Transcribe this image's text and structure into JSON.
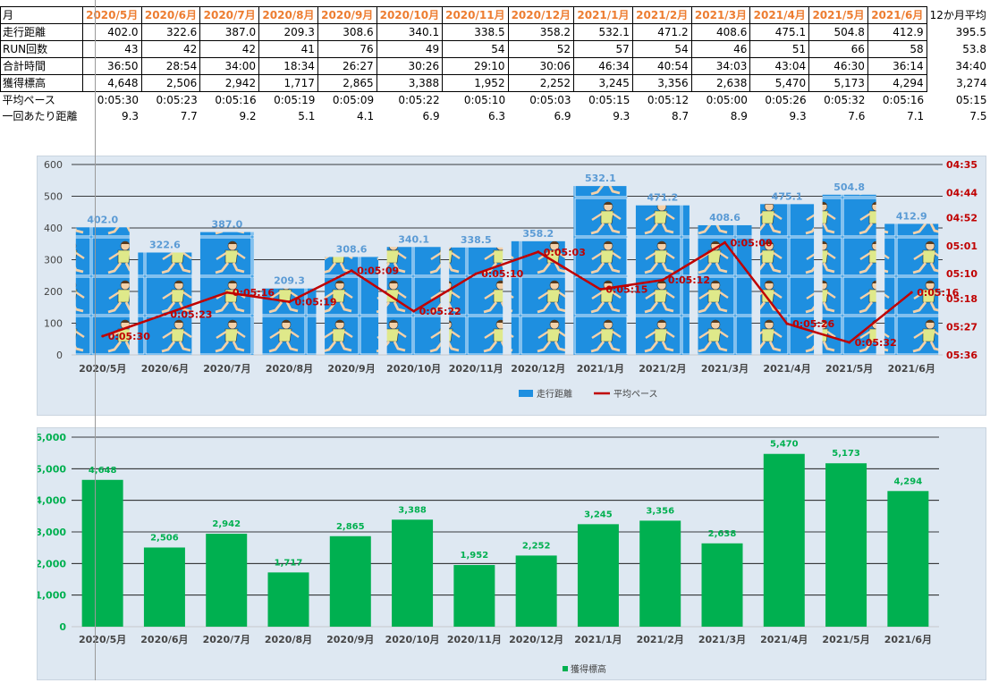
{
  "table": {
    "month_header": "月",
    "avg_header": "12か月平均",
    "months": [
      "2020/5月",
      "2020/6月",
      "2020/7月",
      "2020/8月",
      "2020/9月",
      "2020/10月",
      "2020/11月",
      "2020/12月",
      "2021/1月",
      "2021/2月",
      "2021/3月",
      "2021/4月",
      "2021/5月",
      "2021/6月"
    ],
    "rows": [
      {
        "label": "走行距離",
        "values": [
          "402.0",
          "322.6",
          "387.0",
          "209.3",
          "308.6",
          "340.1",
          "338.5",
          "358.2",
          "532.1",
          "471.2",
          "408.6",
          "475.1",
          "504.8",
          "412.9"
        ],
        "avg": "395.5",
        "bordered": true
      },
      {
        "label": "RUN回数",
        "values": [
          "43",
          "42",
          "42",
          "41",
          "76",
          "49",
          "54",
          "52",
          "57",
          "54",
          "46",
          "51",
          "66",
          "58"
        ],
        "avg": "53.8",
        "bordered": true
      },
      {
        "label": "合計時間",
        "values": [
          "36:50",
          "28:54",
          "34:00",
          "18:34",
          "26:27",
          "30:26",
          "29:10",
          "30:06",
          "46:34",
          "40:54",
          "34:03",
          "43:04",
          "46:30",
          "36:14"
        ],
        "avg": "34:40",
        "bordered": true
      },
      {
        "label": "獲得標高",
        "values": [
          "4,648",
          "2,506",
          "2,942",
          "1,717",
          "2,865",
          "3,388",
          "1,952",
          "2,252",
          "3,245",
          "3,356",
          "2,638",
          "5,470",
          "5,173",
          "4,294"
        ],
        "avg": "3,274",
        "bordered": true
      },
      {
        "label": "平均ペース",
        "values": [
          "0:05:30",
          "0:05:23",
          "0:05:16",
          "0:05:19",
          "0:05:09",
          "0:05:22",
          "0:05:10",
          "0:05:03",
          "0:05:15",
          "0:05:12",
          "0:05:00",
          "0:05:26",
          "0:05:32",
          "0:05:16"
        ],
        "avg": "05:15",
        "bordered": false
      },
      {
        "label": "一回あたり距離",
        "values": [
          "9.3",
          "7.7",
          "9.2",
          "5.1",
          "4.1",
          "6.9",
          "6.3",
          "6.9",
          "9.3",
          "8.7",
          "8.9",
          "9.3",
          "7.6",
          "7.1"
        ],
        "avg": "7.5",
        "bordered": false
      }
    ]
  },
  "colors": {
    "header_month": "#ed7d31",
    "bar_blue": "#1e8fe0",
    "bar_label_blue": "#5b9bd5",
    "pace_line": "#c00000",
    "bar_green": "#00b050",
    "plot_bg": "#dee8f2"
  },
  "chart_data": [
    {
      "type": "bar",
      "categories": [
        "2020/5月",
        "2020/6月",
        "2020/7月",
        "2020/8月",
        "2020/9月",
        "2020/10月",
        "2020/11月",
        "2020/12月",
        "2021/1月",
        "2021/2月",
        "2021/3月",
        "2021/4月",
        "2021/5月",
        "2021/6月"
      ],
      "series": [
        {
          "name": "走行距離",
          "type": "bar",
          "axis": "left",
          "values": [
            402.0,
            322.6,
            387.0,
            209.3,
            308.6,
            340.1,
            338.5,
            358.2,
            532.1,
            471.2,
            408.6,
            475.1,
            504.8,
            412.9
          ],
          "labels": [
            "402.0",
            "322.6",
            "387.0",
            "209.3",
            "308.6",
            "340.1",
            "338.5",
            "358.2",
            "532.1",
            "471.2",
            "408.6",
            "475.1",
            "504.8",
            "412.9"
          ]
        },
        {
          "name": "平均ペース",
          "type": "line",
          "axis": "right",
          "values": [
            "05:30",
            "05:23",
            "05:16",
            "05:19",
            "05:09",
            "05:22",
            "05:10",
            "05:03",
            "05:15",
            "05:12",
            "05:00",
            "05:26",
            "05:32",
            "05:16"
          ],
          "labels": [
            "0:05:30",
            "0:05:23",
            "0:05:16",
            "0:05:19",
            "0:05:09",
            "0:05:22",
            "0:05:10",
            "0:05:03",
            "0:05:15",
            "0:05:12",
            "0:05:00",
            "0:05:26",
            "0:05:32",
            "0:05:16"
          ]
        }
      ],
      "y_left": {
        "min": 0,
        "max": 600,
        "ticks": [
          "0",
          "100",
          "200",
          "300",
          "400",
          "500",
          "600"
        ]
      },
      "y_right": {
        "reversed": true,
        "min": "04:35",
        "max": "05:36",
        "ticks": [
          "04:35",
          "04:44",
          "04:52",
          "05:01",
          "05:10",
          "05:18",
          "05:27",
          "05:36"
        ]
      },
      "grid": true,
      "legend_position": "bottom"
    },
    {
      "type": "bar",
      "categories": [
        "2020/5月",
        "2020/6月",
        "2020/7月",
        "2020/8月",
        "2020/9月",
        "2020/10月",
        "2020/11月",
        "2020/12月",
        "2021/1月",
        "2021/2月",
        "2021/3月",
        "2021/4月",
        "2021/5月",
        "2021/6月"
      ],
      "series": [
        {
          "name": "獲得標高",
          "values": [
            4648,
            2506,
            2942,
            1717,
            2865,
            3388,
            1952,
            2252,
            3245,
            3356,
            2638,
            5470,
            5173,
            4294
          ],
          "labels": [
            "4,648",
            "2,506",
            "2,942",
            "1,717",
            "2,865",
            "3,388",
            "1,952",
            "2,252",
            "3,245",
            "3,356",
            "2,638",
            "5,470",
            "5,173",
            "4,294"
          ]
        }
      ],
      "y_left": {
        "min": 0,
        "max": 6000,
        "ticks": [
          "0",
          "1,000",
          "2,000",
          "3,000",
          "4,000",
          "5,000",
          "6,000"
        ]
      },
      "grid": true,
      "legend_position": "bottom"
    }
  ]
}
